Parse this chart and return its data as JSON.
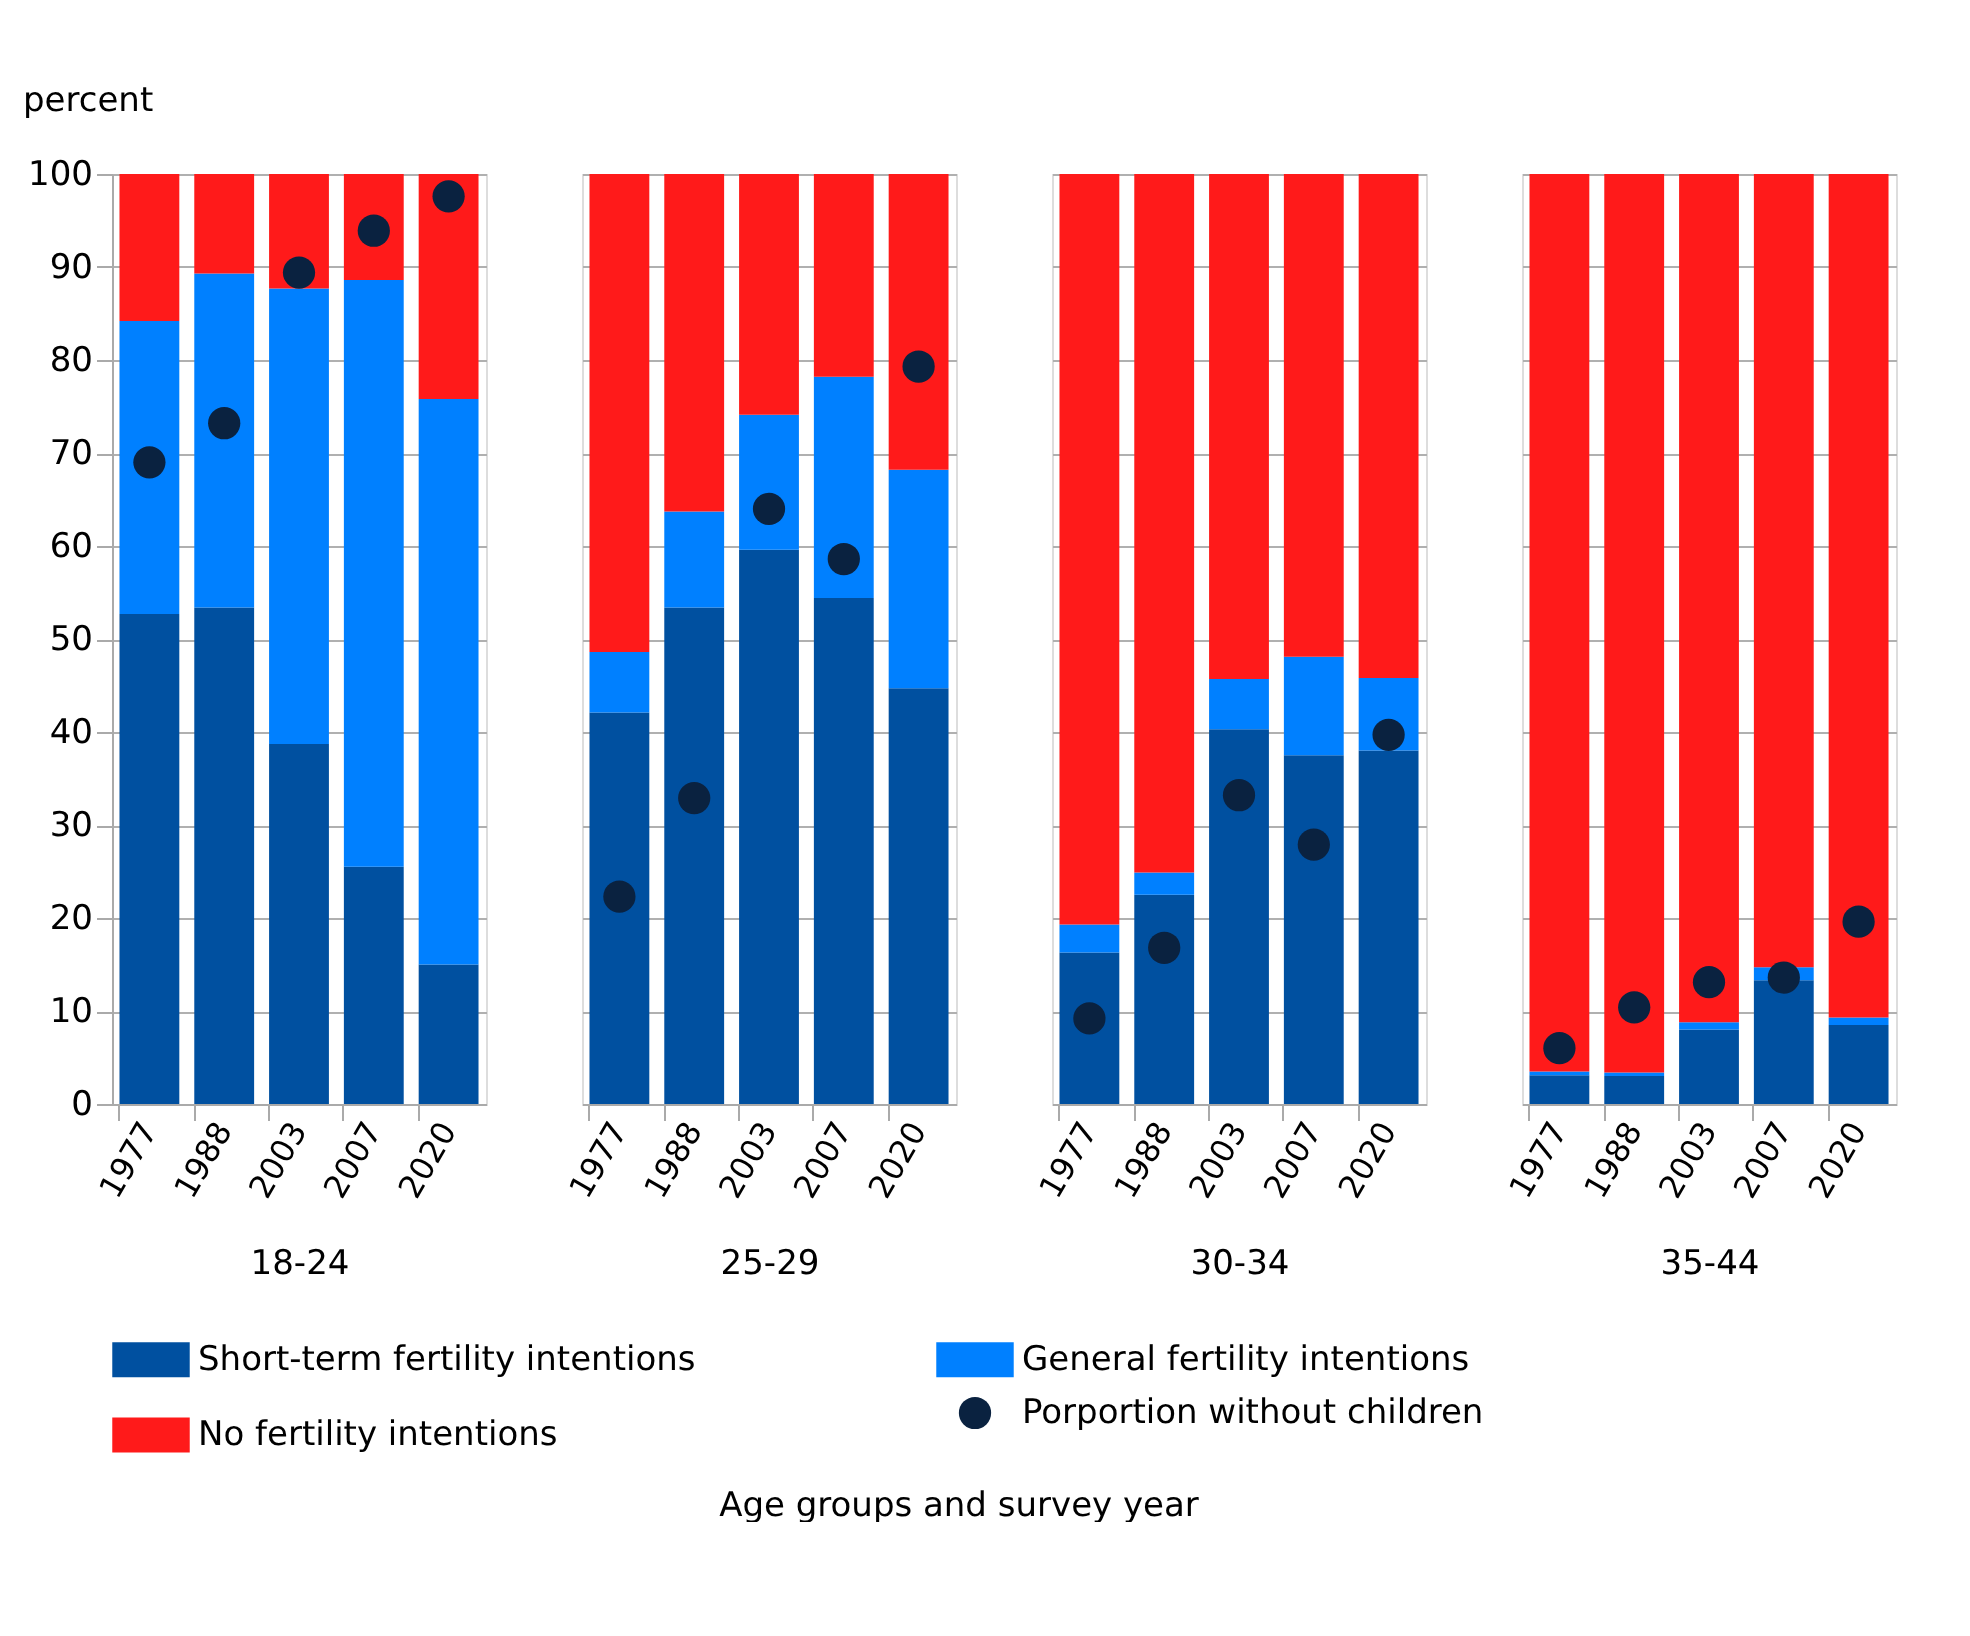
{
  "chart_data": [
    {
      "type": "bar",
      "stacked": true,
      "categories": [
        "1977",
        "1988",
        "2003",
        "2007",
        "2020"
      ],
      "xlabel": "18-24",
      "ylabel": "percent",
      "ylim": [
        0,
        100
      ],
      "yticks": [
        0,
        10,
        20,
        30,
        40,
        50,
        60,
        70,
        80,
        90,
        100
      ],
      "grid": "y",
      "legend": "bottom",
      "annotations": [
        "Age groups and survey year"
      ],
      "series": [
        {
          "name": "Short-term fertility intentions",
          "color": "#0050a0",
          "values": [
            52.7,
            53.4,
            38.7,
            25.5,
            15.0
          ]
        },
        {
          "name": "General fertility intentions",
          "color": "#0080ff",
          "values": [
            31.5,
            35.9,
            49.0,
            63.1,
            60.8
          ]
        },
        {
          "name": "No fertility intentions",
          "color": "#ff1a1a",
          "values": [
            15.8,
            10.7,
            12.3,
            11.4,
            24.2
          ]
        },
        {
          "name": "Porportion without children",
          "type": "scatter",
          "marker": "circle",
          "color": "#0a2240",
          "values": [
            69.0,
            73.2,
            89.4,
            93.9,
            97.6
          ]
        }
      ]
    },
    {
      "type": "bar",
      "stacked": true,
      "categories": [
        "1977",
        "1988",
        "2003",
        "2007",
        "2020"
      ],
      "xlabel": "25-29",
      "ylim": [
        0,
        100
      ],
      "yticks": [
        0,
        10,
        20,
        30,
        40,
        50,
        60,
        70,
        80,
        90,
        100
      ],
      "grid": "y",
      "tick_labels": "x",
      "series": [
        {
          "color": "#0050a0",
          "values": [
            42.1,
            53.4,
            59.6,
            54.4,
            44.7
          ]
        },
        {
          "color": "#0080ff",
          "values": [
            6.5,
            10.3,
            14.5,
            23.8,
            23.5
          ]
        },
        {
          "color": "#ff1a1a",
          "values": [
            51.4,
            36.3,
            25.9,
            21.8,
            31.8
          ]
        },
        {
          "type": "scatter",
          "marker": "circle",
          "color": "#0a2240",
          "values": [
            22.3,
            32.9,
            64.0,
            58.6,
            79.3
          ]
        }
      ]
    },
    {
      "type": "bar",
      "stacked": true,
      "categories": [
        "1977",
        "1988",
        "2003",
        "2007",
        "2020"
      ],
      "xlabel": "30-34",
      "ylim": [
        0,
        100
      ],
      "yticks": [
        0,
        10,
        20,
        30,
        40,
        50,
        60,
        70,
        80,
        90,
        100
      ],
      "grid": "y",
      "tick_labels": "x",
      "series": [
        {
          "color": "#0050a0",
          "values": [
            16.3,
            22.5,
            40.3,
            37.5,
            38.0
          ]
        },
        {
          "color": "#0080ff",
          "values": [
            3.0,
            2.4,
            5.4,
            10.6,
            7.8
          ]
        },
        {
          "color": "#ff1a1a",
          "values": [
            80.7,
            75.1,
            54.3,
            51.9,
            54.2
          ]
        },
        {
          "type": "scatter",
          "marker": "circle",
          "color": "#0a2240",
          "values": [
            9.2,
            16.8,
            33.2,
            27.9,
            39.7
          ]
        }
      ]
    },
    {
      "type": "bar",
      "stacked": true,
      "categories": [
        "1977",
        "1988",
        "2003",
        "2007",
        "2020"
      ],
      "xlabel": "35-44",
      "ylim": [
        0,
        100
      ],
      "yticks": [
        0,
        10,
        20,
        30,
        40,
        50,
        60,
        70,
        80,
        90,
        100
      ],
      "grid": "y",
      "tick_labels": "x",
      "series": [
        {
          "color": "#0050a0",
          "values": [
            3.1,
            3.0,
            8.0,
            13.3,
            8.5
          ]
        },
        {
          "color": "#0080ff",
          "values": [
            0.4,
            0.4,
            0.8,
            1.4,
            0.8
          ]
        },
        {
          "color": "#ff1a1a",
          "values": [
            96.5,
            96.6,
            91.2,
            85.3,
            90.7
          ]
        },
        {
          "type": "scatter",
          "marker": "circle",
          "color": "#0a2240",
          "values": [
            6.0,
            10.4,
            13.1,
            13.6,
            19.6
          ]
        }
      ]
    }
  ]
}
